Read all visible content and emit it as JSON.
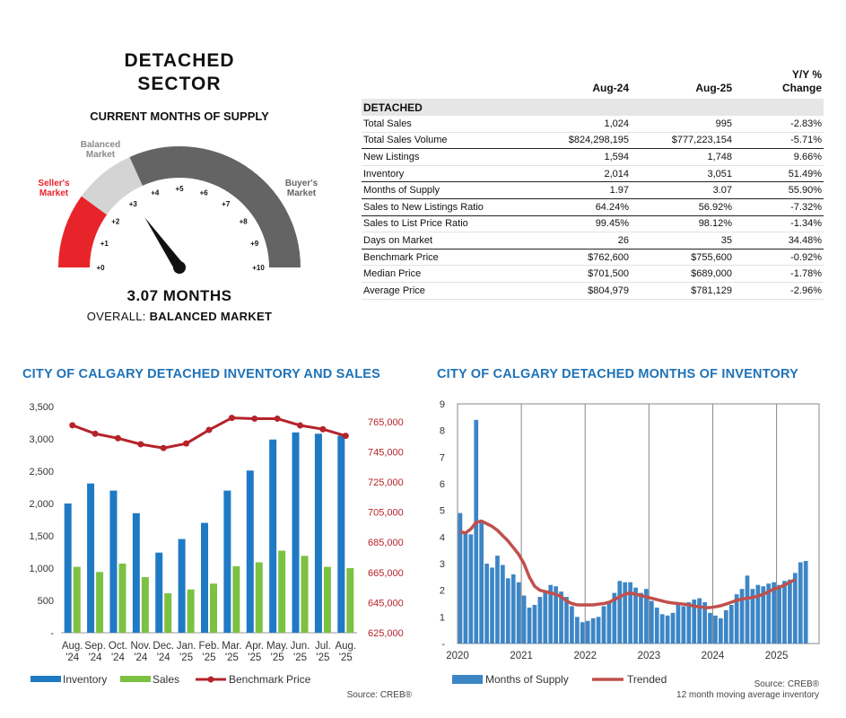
{
  "sector": {
    "line1": "DETACHED",
    "line2": "SECTOR"
  },
  "gauge": {
    "subtitle": "CURRENT MONTHS OF SUPPLY",
    "label_sellers_1": "Seller's",
    "label_sellers_2": "Market",
    "label_balanced_1": "Balanced",
    "label_balanced_2": "Market",
    "label_buyers_1": "Buyer's",
    "label_buyers_2": "Market",
    "ticks": [
      "+0",
      "+1",
      "+2",
      "+3",
      "+4",
      "+5",
      "+6",
      "+7",
      "+8",
      "+9",
      "+10"
    ],
    "min": 0,
    "max": 10,
    "value": 3.07,
    "readout": "3.07 MONTHS",
    "overall_prefix": "OVERALL: ",
    "overall_value": "BALANCED MARKET",
    "colors": {
      "sellers": "#e8242b",
      "balanced": "#d4d4d4",
      "buyers": "#646464",
      "needle": "#111111"
    }
  },
  "stats": {
    "headers": [
      "",
      "Aug-24",
      "Aug-25",
      "Y/Y %",
      "Change"
    ],
    "section": "DETACHED",
    "rows": [
      {
        "label": "Total Sales",
        "a": "1,024",
        "b": "995",
        "c": "-2.83%",
        "thick": false
      },
      {
        "label": "Total Sales Volume",
        "a": "$824,298,195",
        "b": "$777,223,154",
        "c": "-5.71%",
        "thick": true
      },
      {
        "label": "New Listings",
        "a": "1,594",
        "b": "1,748",
        "c": "9.66%",
        "thick": false
      },
      {
        "label": "Inventory",
        "a": "2,014",
        "b": "3,051",
        "c": "51.49%",
        "thick": true
      },
      {
        "label": "Months of Supply",
        "a": "1.97",
        "b": "3.07",
        "c": "55.90%",
        "thick": true
      },
      {
        "label": "Sales to New Listings Ratio",
        "a": "64.24%",
        "b": "56.92%",
        "c": "-7.32%",
        "thick": true
      },
      {
        "label": "Sales to List Price Ratio",
        "a": "99.45%",
        "b": "98.12%",
        "c": "-1.34%",
        "thick": false
      },
      {
        "label": "Days on Market",
        "a": "26",
        "b": "35",
        "c": "34.48%",
        "thick": true
      },
      {
        "label": "Benchmark Price",
        "a": "$762,600",
        "b": "$755,600",
        "c": "-0.92%",
        "thick": false
      },
      {
        "label": "Median Price",
        "a": "$701,500",
        "b": "$689,000",
        "c": "-1.78%",
        "thick": false
      },
      {
        "label": "Average Price",
        "a": "$804,979",
        "b": "$781,129",
        "c": "-2.96%",
        "thick": false
      }
    ]
  },
  "chart_data": [
    {
      "type": "bar",
      "title": "CITY OF CALGARY DETACHED INVENTORY AND SALES",
      "categories_line1": [
        "Aug.",
        "Sep.",
        "Oct.",
        "Nov.",
        "Dec.",
        "Jan.",
        "Feb.",
        "Mar.",
        "Apr.",
        "May.",
        "Jun.",
        "Jul.",
        "Aug."
      ],
      "categories_line2": [
        "'24",
        "'24",
        "'24",
        "'24",
        "'24",
        "'25",
        "'25",
        "'25",
        "'25",
        "'25",
        "'25",
        "'25",
        "'25"
      ],
      "series": [
        {
          "name": "Inventory",
          "type": "bar",
          "axis": "left",
          "color": "#1f7ac4",
          "values": [
            2000,
            2310,
            2200,
            1850,
            1240,
            1450,
            1700,
            2200,
            2510,
            2990,
            3100,
            3080,
            3050
          ]
        },
        {
          "name": "Sales",
          "type": "bar",
          "axis": "left",
          "color": "#7dc142",
          "values": [
            1020,
            940,
            1070,
            860,
            610,
            670,
            760,
            1030,
            1090,
            1270,
            1190,
            1020,
            1000
          ]
        },
        {
          "name": "Benchmark Price",
          "type": "line",
          "axis": "right",
          "color": "#b5232a",
          "values": [
            762600,
            757000,
            754000,
            750000,
            747500,
            750500,
            759500,
            767500,
            767000,
            767000,
            762500,
            760000,
            755600
          ]
        }
      ],
      "yleft_ticks": [
        "-",
        "500",
        "1,000",
        "1,500",
        "2,000",
        "2,500",
        "3,000",
        "3,500"
      ],
      "yleft_lim": [
        0,
        3500
      ],
      "yright_ticks": [
        "625,000",
        "645,000",
        "665,000",
        "685,000",
        "705,000",
        "725,000",
        "745,000",
        "765,000"
      ],
      "yright_lim": [
        625000,
        765000
      ],
      "ylim_right_display_max": 775000,
      "legend": [
        "Inventory",
        "Sales",
        "Benchmark Price"
      ],
      "legend_position": "bottom",
      "source": "Source: CREB®",
      "grid": false
    },
    {
      "type": "bar",
      "title": "CITY OF CALGARY DETACHED MONTHS OF INVENTORY",
      "x_start": "2020-01",
      "x_end": "2025-08",
      "series": [
        {
          "name": "Months of Supply",
          "type": "bar",
          "color": "#3d86c6",
          "values": [
            4.9,
            4.2,
            4.1,
            8.4,
            4.6,
            3.0,
            2.85,
            3.3,
            2.95,
            2.45,
            2.6,
            2.3,
            1.8,
            1.35,
            1.45,
            1.75,
            1.95,
            2.2,
            2.15,
            1.95,
            1.75,
            1.4,
            1.0,
            0.8,
            0.85,
            0.95,
            1.0,
            1.4,
            1.6,
            1.9,
            2.35,
            2.3,
            2.3,
            2.1,
            1.9,
            2.05,
            1.6,
            1.35,
            1.1,
            1.05,
            1.15,
            1.5,
            1.4,
            1.55,
            1.65,
            1.7,
            1.55,
            1.15,
            1.05,
            0.95,
            1.25,
            1.45,
            1.85,
            2.05,
            2.55,
            2.05,
            2.2,
            2.15,
            2.25,
            2.3,
            2.2,
            2.35,
            2.4,
            2.65,
            3.05,
            3.1
          ]
        },
        {
          "name": "Trended",
          "type": "line",
          "color": "#c0504d",
          "values": [
            4.2,
            4.15,
            4.3,
            4.55,
            4.6,
            4.5,
            4.4,
            4.25,
            4.05,
            3.85,
            3.6,
            3.35,
            3.0,
            2.5,
            2.15,
            2.0,
            1.95,
            1.9,
            1.85,
            1.75,
            1.6,
            1.5,
            1.45,
            1.45,
            1.45,
            1.45,
            1.48,
            1.5,
            1.55,
            1.65,
            1.75,
            1.85,
            1.9,
            1.85,
            1.8,
            1.75,
            1.7,
            1.65,
            1.6,
            1.55,
            1.52,
            1.5,
            1.48,
            1.45,
            1.4,
            1.38,
            1.35,
            1.35,
            1.38,
            1.42,
            1.48,
            1.55,
            1.62,
            1.67,
            1.7,
            1.73,
            1.78,
            1.85,
            1.95,
            2.05,
            2.1,
            2.2,
            2.3,
            2.4
          ]
        }
      ],
      "x_ticks": [
        "2020",
        "2021",
        "2022",
        "2023",
        "2024",
        "2025"
      ],
      "y_ticks": [
        "-",
        "1",
        "2",
        "3",
        "4",
        "5",
        "6",
        "7",
        "8",
        "9"
      ],
      "ylim": [
        0,
        9
      ],
      "legend": [
        "Months of Supply",
        "Trended"
      ],
      "legend_position": "bottom",
      "source": "Source: CREB®",
      "note": "12 month moving average inventory",
      "grid": "vertical lines at year boundaries"
    }
  ]
}
